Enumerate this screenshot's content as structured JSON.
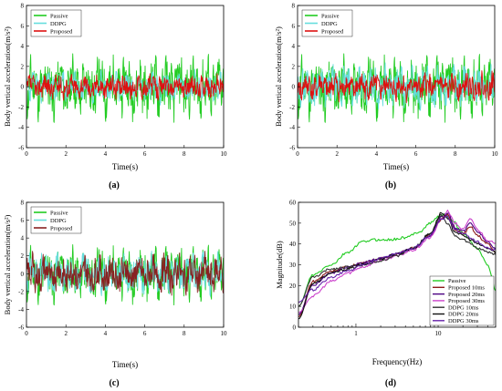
{
  "chart_data": [
    {
      "id": "a",
      "type": "line",
      "panel_label": "(a)",
      "xlabel": "Time(s)",
      "ylabel": "Body vertical acceleration(m/s²)",
      "xlim": [
        0,
        10
      ],
      "ylim": [
        -6,
        8
      ],
      "xticks": [
        0,
        2,
        4,
        6,
        8,
        10
      ],
      "yticks": [
        -6,
        -4,
        -2,
        0,
        2,
        4,
        6,
        8
      ],
      "legend_position": "top-left",
      "series": [
        {
          "name": "Passive",
          "color": "#22cc22",
          "amplitude": 5.5,
          "seed": 11
        },
        {
          "name": "DDPG",
          "color": "#66dddd",
          "amplitude": 2.6,
          "seed": 23
        },
        {
          "name": "Proposed",
          "color": "#dd1111",
          "amplitude": 2.2,
          "seed": 37
        }
      ]
    },
    {
      "id": "b",
      "type": "line",
      "panel_label": "(b)",
      "xlabel": "Time(s)",
      "ylabel": "Body vertical acceleration(m/s²)",
      "xlim": [
        0,
        10
      ],
      "ylim": [
        -6,
        8
      ],
      "xticks": [
        0,
        2,
        4,
        6,
        8,
        10
      ],
      "yticks": [
        -6,
        -4,
        -2,
        0,
        2,
        4,
        6,
        8
      ],
      "legend_position": "top-left",
      "series": [
        {
          "name": "Passive",
          "color": "#22cc22",
          "amplitude": 5.5,
          "seed": 11
        },
        {
          "name": "DDPG",
          "color": "#66dddd",
          "amplitude": 3.6,
          "seed": 29
        },
        {
          "name": "Proposed",
          "color": "#dd1111",
          "amplitude": 2.4,
          "seed": 41
        }
      ]
    },
    {
      "id": "c",
      "type": "line",
      "panel_label": "(c)",
      "xlabel": "Time(s)",
      "ylabel": "Body vertical acceleration(m/s²)",
      "xlim": [
        0,
        10
      ],
      "ylim": [
        -6,
        8
      ],
      "xticks": [
        0,
        2,
        4,
        6,
        8,
        10
      ],
      "yticks": [
        -6,
        -4,
        -2,
        0,
        2,
        4,
        6,
        8
      ],
      "legend_position": "top-left",
      "series": [
        {
          "name": "Passive",
          "color": "#22cc22",
          "amplitude": 5.5,
          "seed": 11
        },
        {
          "name": "DDPG",
          "color": "#66dddd",
          "amplitude": 4.0,
          "seed": 31
        },
        {
          "name": "Proposed",
          "color": "#882222",
          "amplitude": 3.8,
          "seed": 43
        }
      ]
    },
    {
      "id": "d",
      "type": "line",
      "panel_label": "(d)",
      "xlabel": "Frequency(Hz)",
      "ylabel": "Magnitude(dB)",
      "xscale": "log",
      "xlim": [
        0.2,
        50
      ],
      "ylim": [
        0,
        60
      ],
      "xticks": [
        1,
        10
      ],
      "yticks": [
        0,
        10,
        20,
        30,
        40,
        50,
        60
      ],
      "legend_position": "bottom-right",
      "series": [
        {
          "name": "Passive",
          "color": "#22cc22",
          "x": [
            0.2,
            0.3,
            0.5,
            0.8,
            1.2,
            1.6,
            2.5,
            4,
            6,
            8,
            10,
            12,
            15,
            20,
            30,
            40,
            50
          ],
          "y": [
            10,
            25,
            30,
            36,
            41,
            42,
            42,
            43,
            46,
            50,
            53,
            54,
            51,
            45,
            38,
            30,
            18
          ]
        },
        {
          "name": "Proposed 10ms",
          "color": "#8b1a1a",
          "x": [
            0.2,
            0.3,
            0.5,
            0.8,
            1.2,
            2,
            3,
            5,
            8,
            11,
            13,
            16,
            20,
            25,
            30,
            40,
            50
          ],
          "y": [
            5,
            22,
            27,
            29,
            31,
            33,
            35,
            38,
            44,
            52,
            54,
            47,
            45,
            48,
            44,
            40,
            36
          ]
        },
        {
          "name": "Proposed 20ms",
          "color": "#4b0082",
          "x": [
            0.2,
            0.3,
            0.5,
            0.8,
            1.2,
            2,
            3,
            5,
            8,
            11,
            13,
            16,
            20,
            25,
            30,
            40,
            50
          ],
          "y": [
            6,
            20,
            26,
            29,
            31,
            33,
            35,
            38,
            44,
            53,
            55,
            48,
            46,
            50,
            46,
            41,
            38
          ]
        },
        {
          "name": "Proposed 30ms",
          "color": "#cc44cc",
          "x": [
            0.2,
            0.3,
            0.5,
            0.8,
            1.2,
            2,
            3,
            5,
            8,
            11,
            13,
            16,
            20,
            25,
            30,
            40,
            50
          ],
          "y": [
            7,
            15,
            22,
            26,
            29,
            32,
            34,
            37,
            43,
            52,
            56,
            50,
            47,
            52,
            47,
            42,
            40
          ]
        },
        {
          "name": "DDPG 10ms",
          "color": "#333333",
          "x": [
            0.2,
            0.3,
            0.5,
            0.8,
            1.2,
            2,
            3,
            5,
            8,
            11,
            13,
            16,
            20,
            25,
            30,
            40,
            50
          ],
          "y": [
            10,
            24,
            28,
            29,
            30,
            32,
            34,
            38,
            45,
            54,
            50,
            44,
            42,
            40,
            38,
            36,
            35
          ]
        },
        {
          "name": "DDPG 20ms",
          "color": "#111111",
          "x": [
            0.2,
            0.3,
            0.5,
            0.8,
            1.2,
            2,
            3,
            5,
            8,
            11,
            13,
            16,
            20,
            25,
            30,
            40,
            50
          ],
          "y": [
            4,
            21,
            26,
            28,
            30,
            33,
            35,
            38,
            45,
            55,
            52,
            46,
            44,
            42,
            40,
            38,
            36
          ]
        },
        {
          "name": "DDPG 30ms",
          "color": "#6622aa",
          "x": [
            0.2,
            0.3,
            0.5,
            0.8,
            1.2,
            2,
            3,
            5,
            8,
            11,
            13,
            16,
            20,
            25,
            30,
            40,
            50
          ],
          "y": [
            12,
            18,
            24,
            27,
            30,
            33,
            35,
            38,
            44,
            52,
            53,
            47,
            45,
            43,
            41,
            38,
            37
          ]
        }
      ]
    }
  ]
}
